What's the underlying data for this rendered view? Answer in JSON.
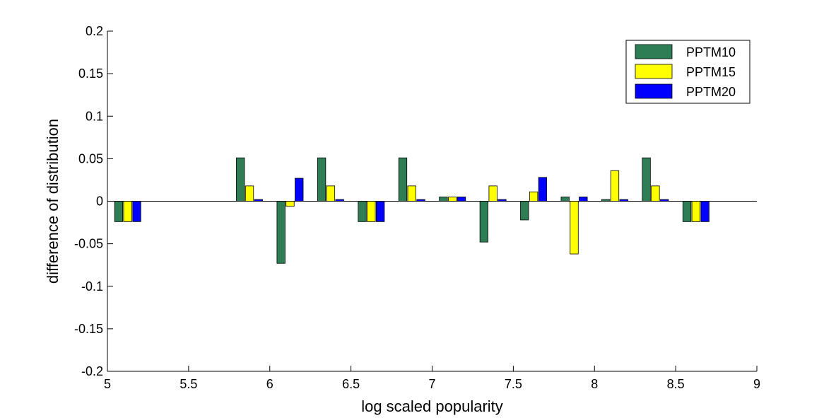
{
  "chart_data": {
    "type": "bar",
    "title": "",
    "xlabel": "log scaled popularity",
    "ylabel": "difference of distribution",
    "xlim": [
      5,
      9
    ],
    "ylim": [
      -0.2,
      0.2
    ],
    "xticks": [
      5,
      5.5,
      6,
      6.5,
      7,
      7.5,
      8,
      8.5,
      9
    ],
    "xtick_labels": [
      "5",
      "5.5",
      "6",
      "6.5",
      "7",
      "7.5",
      "8",
      "8.5",
      "9"
    ],
    "yticks": [
      0.2,
      0.15,
      0.1,
      0.05,
      0,
      -0.05,
      -0.1,
      -0.15,
      -0.2
    ],
    "ytick_labels": [
      "0.2",
      "0.15",
      "0.1",
      "0.05",
      "0",
      "-0.05",
      "-0.1",
      "-0.15",
      "-0.2"
    ],
    "grid": false,
    "legend_position": "top-right",
    "x": [
      5.125,
      5.375,
      5.625,
      5.875,
      6.125,
      6.375,
      6.625,
      6.875,
      7.125,
      7.375,
      7.625,
      7.875,
      8.125,
      8.375,
      8.625
    ],
    "series": [
      {
        "name": "PPTM10",
        "color": "#2e7d55",
        "values": [
          -0.024,
          0,
          0,
          0.051,
          -0.073,
          0.051,
          -0.024,
          0.051,
          0.005,
          -0.048,
          -0.022,
          0.005,
          0.002,
          0.051,
          -0.024
        ]
      },
      {
        "name": "PPTM15",
        "color": "#ffff00",
        "values": [
          -0.024,
          0,
          0,
          0.018,
          -0.006,
          0.018,
          -0.024,
          0.018,
          0.005,
          0.018,
          0.011,
          -0.062,
          0.036,
          0.018,
          -0.024
        ]
      },
      {
        "name": "PPTM20",
        "color": "#0000ff",
        "values": [
          -0.024,
          0,
          0,
          0.002,
          0.027,
          0.002,
          -0.024,
          0.002,
          0.005,
          0.002,
          0.028,
          0.005,
          0.002,
          0.002,
          -0.024
        ]
      }
    ]
  }
}
